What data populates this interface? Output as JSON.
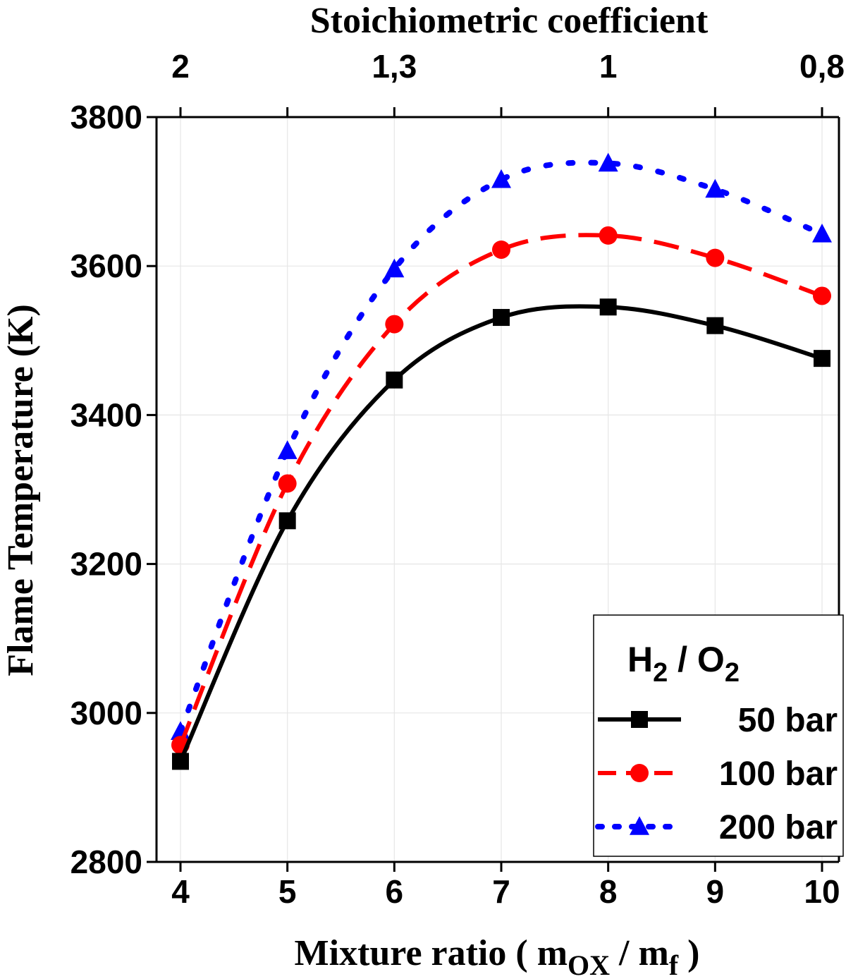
{
  "chart_data": {
    "type": "line",
    "xlabel_main": "Mixture ratio ( m",
    "xlabel_sub1": "OX",
    "xlabel_mid": " / m",
    "xlabel_sub2": "f",
    "xlabel_end": " )",
    "ylabel": "Flame Temperature (K)",
    "top_axis_label": "Stoichiometric coefficient",
    "x": [
      4,
      5,
      6,
      7,
      8,
      9,
      10
    ],
    "xlim": [
      4,
      10
    ],
    "ylim": [
      2800,
      3800
    ],
    "y_ticks": [
      2800,
      3000,
      3200,
      3400,
      3600,
      3800
    ],
    "top_ticks": [
      {
        "x": 4,
        "label": "2"
      },
      {
        "x": 5,
        "label": ""
      },
      {
        "x": 6,
        "label": "1,3"
      },
      {
        "x": 7,
        "label": ""
      },
      {
        "x": 8,
        "label": "1"
      },
      {
        "x": 9,
        "label": ""
      },
      {
        "x": 10,
        "label": "0,8"
      }
    ],
    "legend": {
      "title_main1": "H",
      "title_sub1": "2",
      "title_mid": " / O",
      "title_sub2": "2",
      "placement": "bottom-right"
    },
    "grid": true,
    "series": [
      {
        "name": "50 bar",
        "values": [
          2935,
          3258,
          3447,
          3531,
          3545,
          3520,
          3476
        ],
        "color": "#000000",
        "marker": "square",
        "dash": "solid"
      },
      {
        "name": "100 bar",
        "values": [
          2957,
          3308,
          3522,
          3622,
          3641,
          3611,
          3560
        ],
        "color": "#ff0000",
        "marker": "circle",
        "dash": "dashed"
      },
      {
        "name": "200 bar",
        "values": [
          2975,
          3352,
          3596,
          3716,
          3738,
          3703,
          3643
        ],
        "color": "#0000ff",
        "marker": "triangle",
        "dash": "dotted"
      }
    ]
  }
}
